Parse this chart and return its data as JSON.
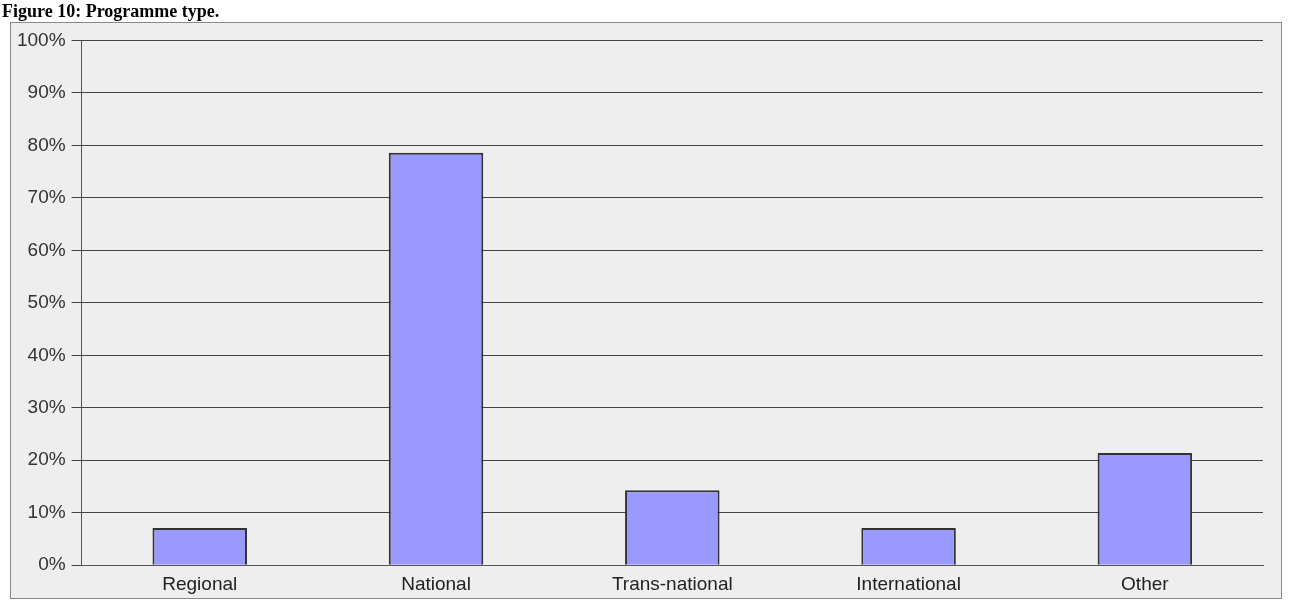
{
  "chart_data": {
    "type": "bar",
    "title": "Figure 10: Programme type.",
    "categories": [
      "Regional",
      "National",
      "Trans-national",
      "International",
      "Other"
    ],
    "values": [
      7.1,
      78.6,
      14.3,
      7.1,
      21.4
    ],
    "color": "#9999ff",
    "ylim": [
      0,
      100
    ],
    "yticks": [
      {
        "value": 0,
        "label": "0%"
      },
      {
        "value": 10,
        "label": "10%"
      },
      {
        "value": 20,
        "label": "20%"
      },
      {
        "value": 30,
        "label": "30%"
      },
      {
        "value": 40,
        "label": "40%"
      },
      {
        "value": 50,
        "label": "50%"
      },
      {
        "value": 60,
        "label": "60%"
      },
      {
        "value": 70,
        "label": "70%"
      },
      {
        "value": 80,
        "label": "80%"
      },
      {
        "value": 90,
        "label": "90%"
      },
      {
        "value": 100,
        "label": "100%"
      }
    ],
    "grid": "y",
    "legend": false
  }
}
